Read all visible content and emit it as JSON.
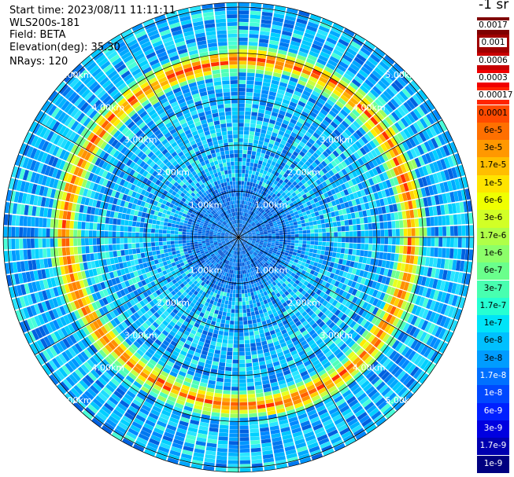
{
  "header": {
    "start_time": "Start time: 2023/08/11 11:11:11",
    "instrument": "WLS200s-181",
    "field": "Field: BETA",
    "elevation": "Elevation(deg): 35.30",
    "nrays": "NRays: 120"
  },
  "colorbar": {
    "unit_label": "-1 sr",
    "labels": [
      "0.0017",
      "0.001",
      "0.0006",
      "0.0003",
      "0.00017",
      "0.0001",
      "6e-5",
      "3e-5",
      "1.7e-5",
      "1e-5",
      "6e-6",
      "3e-6",
      "1.7e-6",
      "1e-6",
      "6e-7",
      "3e-7",
      "1.7e-7",
      "1e-7",
      "6e-8",
      "3e-8",
      "1.7e-8",
      "1e-8",
      "6e-9",
      "3e-9",
      "1.7e-9",
      "1e-9"
    ],
    "colors": [
      "#7f0000",
      "#a00000",
      "#c80000",
      "#f00000",
      "#ff2400",
      "#ff4a00",
      "#ff7000",
      "#ff9800",
      "#ffbe00",
      "#ffe400",
      "#f0ff00",
      "#d2ff26",
      "#b0ff48",
      "#8cff6a",
      "#6aff8c",
      "#48ffb0",
      "#26ffd2",
      "#00e4f8",
      "#00c0ff",
      "#009cff",
      "#0070ff",
      "#0048ff",
      "#0020ff",
      "#0000e0",
      "#0000b0",
      "#000080"
    ]
  },
  "chart_data": {
    "type": "heatmap",
    "projection": "polar PPI",
    "title": "",
    "field": "BETA",
    "n_rays": 120,
    "range_rings_km": [
      1,
      2,
      3,
      4,
      5
    ],
    "ring_labels": [
      "1.00km",
      "2.00km",
      "3.00km",
      "4.00km",
      "5.00km"
    ],
    "max_range_km": 5.1,
    "bright_ring_range_km": 3.75,
    "bright_ring_value": "1.7e-5 to 1e-4",
    "background_value": "1e-8 to 1e-7",
    "radial_spokes_every_deg": 30
  }
}
